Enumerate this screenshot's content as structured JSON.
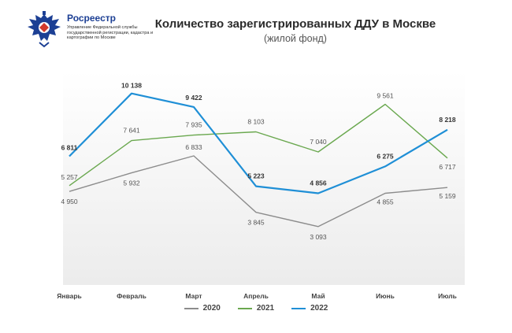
{
  "brand": {
    "name": "Росреестр",
    "subtitle": "Управление Федеральной службы государственной регистрации, кадастра и картографии по Москве",
    "emblem_icon": "double-headed-eagle-icon"
  },
  "colors": {
    "series_2020": "#8c8c8c",
    "series_2021": "#6aa84f",
    "series_2022": "#1f8fd6",
    "brand": "#1c3f94"
  },
  "chart_data": {
    "type": "line",
    "title": "Количество зарегистрированных ДДУ в Москве",
    "subtitle": "(жилой фонд)",
    "categories": [
      "Январь",
      "Февраль",
      "Март",
      "Апрель",
      "Май",
      "Июнь",
      "Июль"
    ],
    "series": [
      {
        "name": "2020",
        "values": [
          4950,
          5932,
          6833,
          3845,
          3093,
          4855,
          5159
        ],
        "labels": [
          "4 950",
          "5 932",
          "6 833",
          "3 845",
          "3 093",
          "4 855",
          "5 159"
        ]
      },
      {
        "name": "2021",
        "values": [
          5257,
          7641,
          7935,
          8103,
          7040,
          9561,
          6717
        ],
        "labels": [
          "5 257",
          "7 641",
          "7 935",
          "8 103",
          "7 040",
          "9 561",
          "6 717"
        ]
      },
      {
        "name": "2022",
        "values": [
          6811,
          10138,
          9422,
          5223,
          4856,
          6275,
          8218
        ],
        "labels": [
          "6 811",
          "10 138",
          "9 422",
          "5 223",
          "4 856",
          "6 275",
          "8 218"
        ]
      }
    ],
    "ylim": [
      0,
      11000
    ],
    "grid": false,
    "legend_position": "bottom"
  }
}
